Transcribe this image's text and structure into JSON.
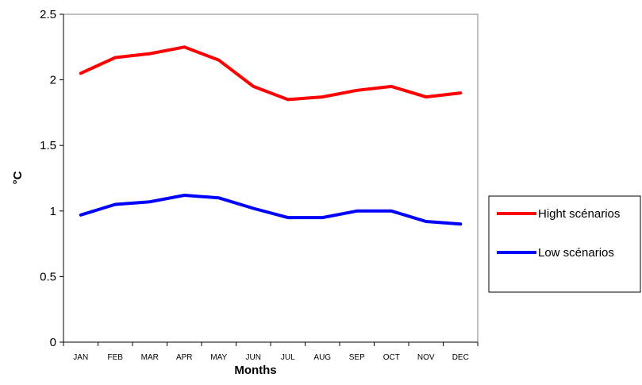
{
  "chart_data": {
    "type": "line",
    "title": "",
    "xlabel": "Months",
    "ylabel": "°C",
    "categories": [
      "JAN",
      "FEB",
      "MAR",
      "APR",
      "MAY",
      "JUN",
      "JUL",
      "AUG",
      "SEP",
      "OCT",
      "NOV",
      "DEC"
    ],
    "ylim": [
      0,
      2.5
    ],
    "yticks": [
      0,
      0.5,
      1,
      1.5,
      2,
      2.5
    ],
    "ytick_labels": [
      "0",
      "0.5",
      "1",
      "1.5",
      "2",
      "2.5"
    ],
    "grid": false,
    "legend_position": "right",
    "series": [
      {
        "name": "Hight scénarios",
        "color": "#ff0000",
        "values": [
          2.05,
          2.17,
          2.2,
          2.25,
          2.15,
          1.95,
          1.85,
          1.87,
          1.92,
          1.95,
          1.87,
          1.9
        ]
      },
      {
        "name": "Low scénarios",
        "color": "#0000ff",
        "values": [
          0.97,
          1.05,
          1.07,
          1.12,
          1.1,
          1.02,
          0.95,
          0.95,
          1.0,
          1.0,
          0.92,
          0.9
        ]
      }
    ]
  }
}
